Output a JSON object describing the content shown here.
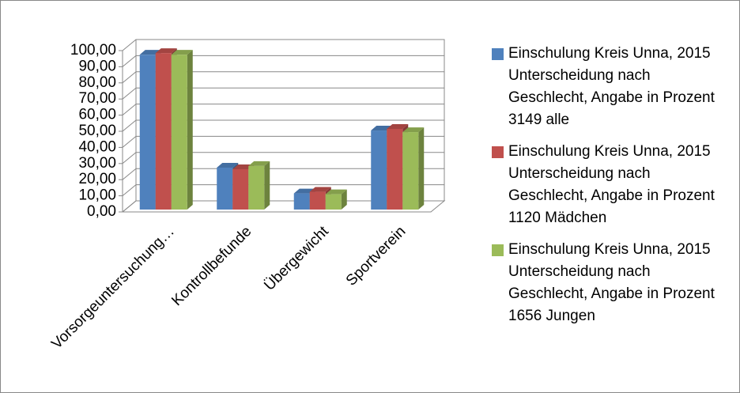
{
  "chart_data": {
    "type": "bar",
    "categories": [
      "Vorsorgeuntersuchung…",
      "Kontrollbefunde",
      "Übergewicht",
      "Sportverein"
    ],
    "series": [
      {
        "name": "Einschulung Kreis Unna, 2015 Unterscheidung nach Geschlecht, Angabe in Prozent 3149 alle",
        "color": "#4f81bd",
        "values": [
          96,
          26,
          10,
          49
        ]
      },
      {
        "name": "Einschulung Kreis Unna, 2015 Unterscheidung nach Geschlecht, Angabe in Prozent 1120 Mädchen",
        "color": "#c0504d",
        "values": [
          97,
          25,
          11,
          50
        ]
      },
      {
        "name": "Einschulung Kreis Unna, 2015 Unterscheidung nach Geschlecht, Angabe in Prozent 1656 Jungen",
        "color": "#9bbb59",
        "values": [
          96,
          27,
          9.5,
          48
        ]
      }
    ],
    "ylim": [
      0,
      100
    ],
    "yticks": [
      {
        "value": 0,
        "label": "0,00"
      },
      {
        "value": 10,
        "label": "10,00"
      },
      {
        "value": 20,
        "label": "20,00"
      },
      {
        "value": 30,
        "label": "30,00"
      },
      {
        "value": 40,
        "label": "40,00"
      },
      {
        "value": 50,
        "label": "50,00"
      },
      {
        "value": 60,
        "label": "60,00"
      },
      {
        "value": 70,
        "label": "70,00"
      },
      {
        "value": 80,
        "label": "80,00"
      },
      {
        "value": 90,
        "label": "90,00"
      },
      {
        "value": 100,
        "label": "100,00"
      }
    ],
    "grid": true,
    "legend": "right"
  }
}
